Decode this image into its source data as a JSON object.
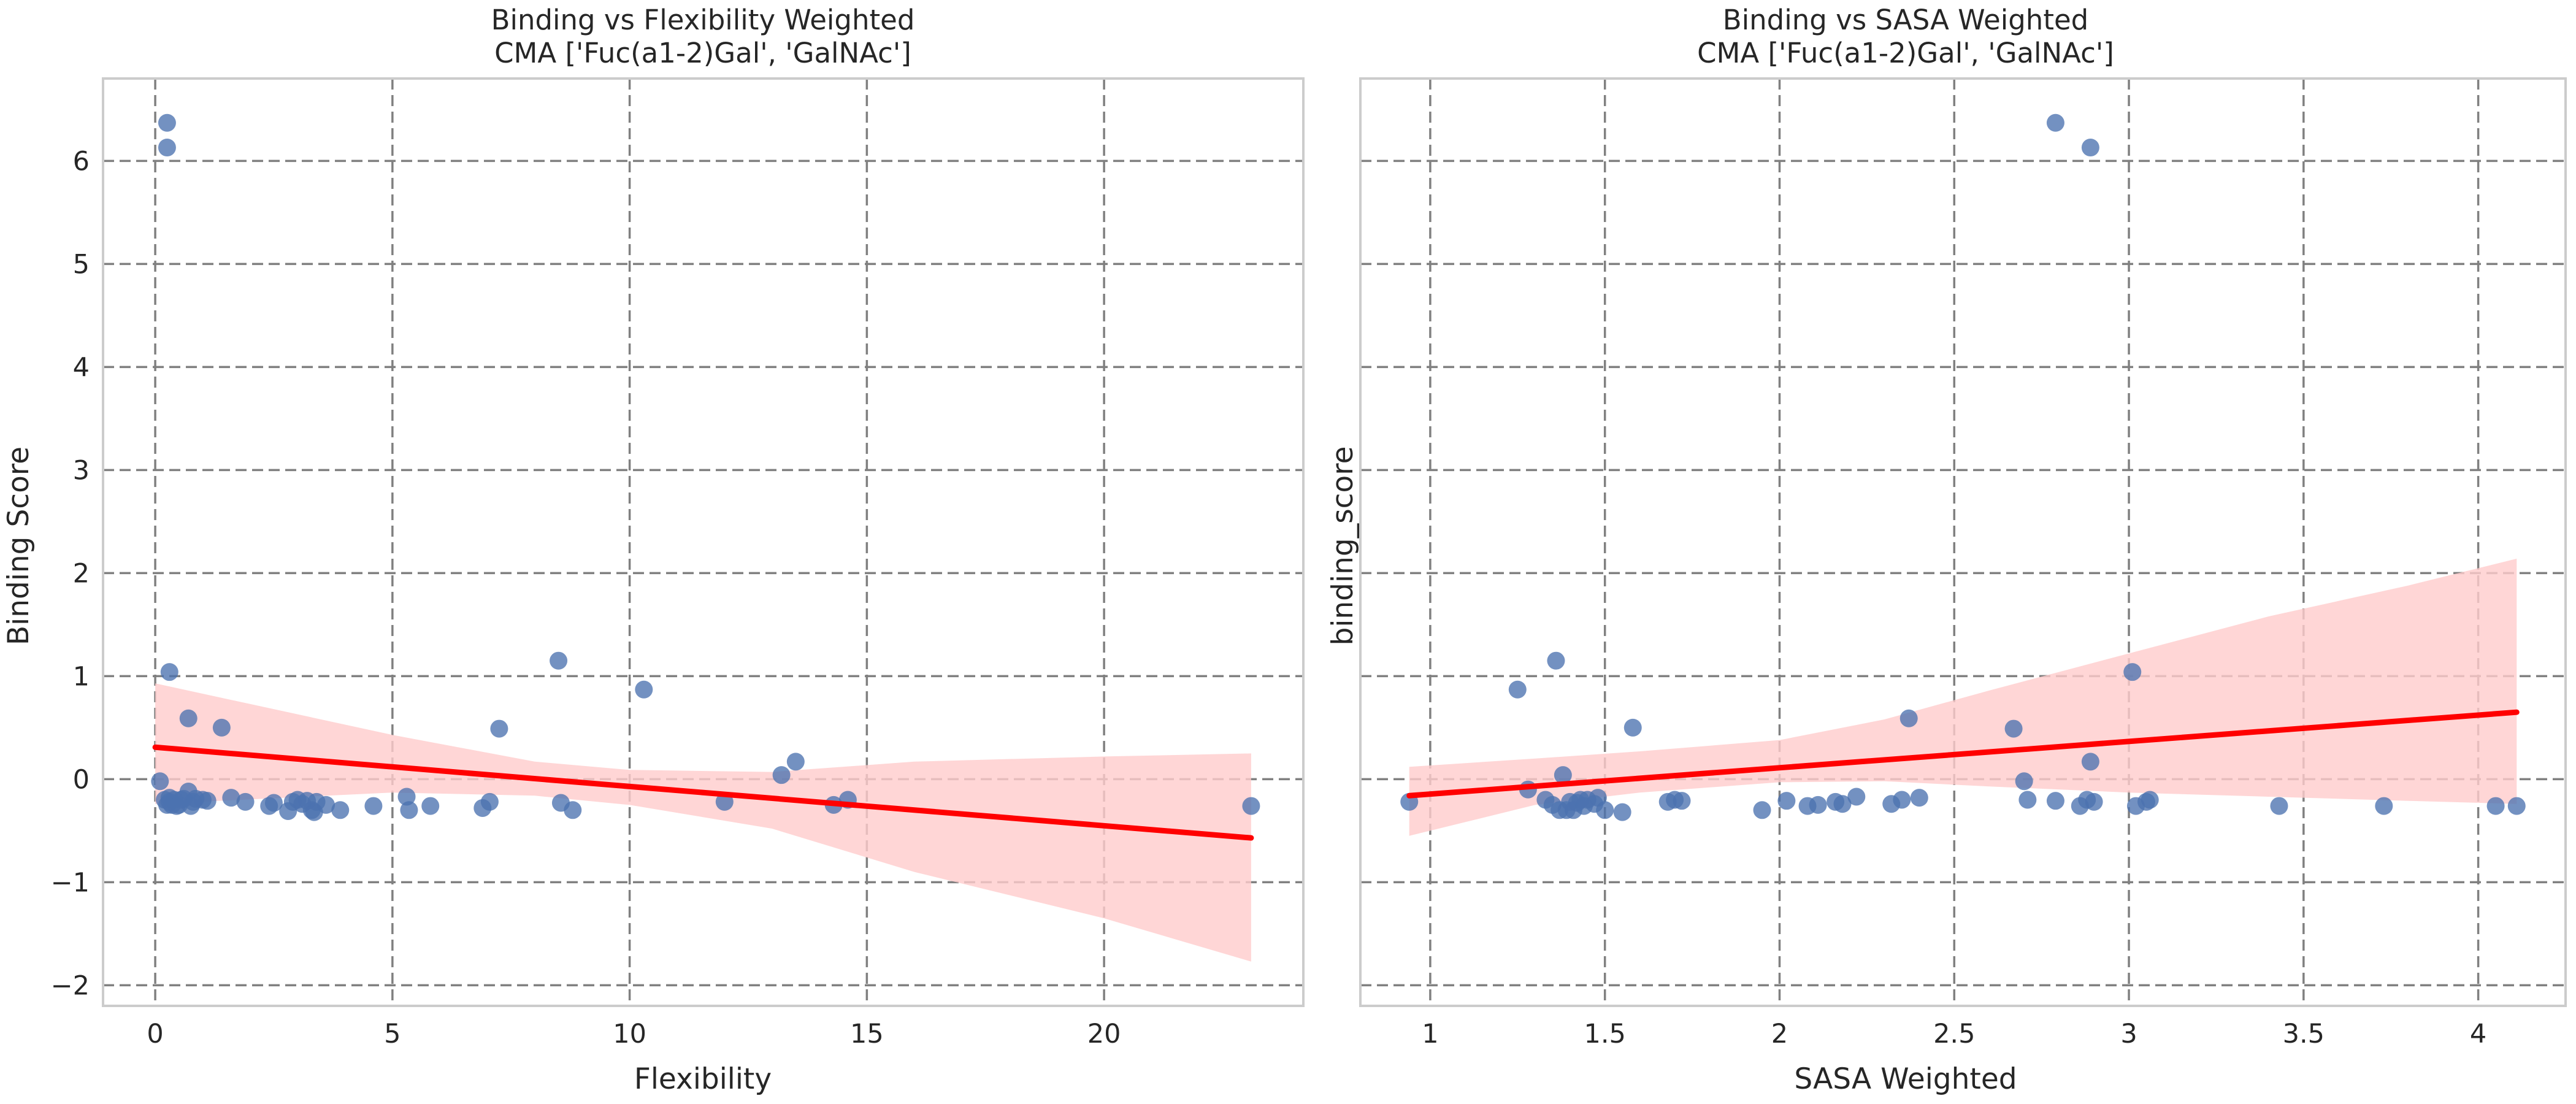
{
  "chart_data": [
    {
      "type": "scatter",
      "title": "Binding vs Flexibility Weighted",
      "subtitle": "CMA ['Fuc(a1-2)Gal', 'GalNAc']",
      "xlabel": "Flexibility",
      "ylabel": "Binding Score",
      "xlim": [
        -1.1,
        24.2
      ],
      "ylim": [
        -2.2,
        6.8
      ],
      "xticks": [
        0,
        5,
        10,
        15,
        20
      ],
      "yticks": [
        -2,
        -1,
        0,
        1,
        2,
        3,
        4,
        5,
        6
      ],
      "grid": true,
      "grid_style": "dashed",
      "point_color": "#4c72b0",
      "fit_color": "#ff0000",
      "band_color": "#ffcccc",
      "points": {
        "x": [
          0.1,
          0.2,
          0.25,
          0.3,
          0.3,
          0.35,
          0.4,
          0.45,
          0.5,
          0.55,
          0.6,
          0.7,
          0.75,
          0.8,
          0.85,
          1.0,
          1.1,
          1.4,
          1.6,
          1.9,
          2.4,
          2.5,
          2.8,
          2.9,
          3.0,
          3.1,
          3.2,
          3.3,
          3.35,
          3.4,
          3.6,
          3.9,
          4.6,
          5.3,
          5.35,
          5.8,
          6.9,
          7.05,
          7.25,
          8.5,
          8.55,
          8.8,
          10.3,
          12.0,
          13.2,
          13.5,
          14.3,
          14.6,
          23.1,
          0.25,
          0.25,
          0.3,
          0.7
        ],
        "y": [
          -0.02,
          -0.2,
          -0.25,
          -0.22,
          -0.18,
          -0.25,
          -0.2,
          -0.26,
          -0.25,
          -0.2,
          -0.19,
          -0.12,
          -0.26,
          -0.22,
          -0.19,
          -0.2,
          -0.21,
          0.5,
          -0.18,
          -0.22,
          -0.26,
          -0.23,
          -0.31,
          -0.22,
          -0.2,
          -0.24,
          -0.21,
          -0.3,
          -0.32,
          -0.22,
          -0.25,
          -0.3,
          -0.26,
          -0.17,
          -0.3,
          -0.26,
          -0.28,
          -0.22,
          0.49,
          1.15,
          -0.23,
          -0.3,
          0.87,
          -0.22,
          0.04,
          0.17,
          -0.25,
          -0.2,
          -0.26,
          6.37,
          6.13,
          1.04,
          0.59
        ]
      },
      "fit_line": {
        "x": [
          0.0,
          23.1
        ],
        "y": [
          0.31,
          -0.57
        ]
      },
      "confidence_band": {
        "x": [
          0.0,
          5.0,
          8.0,
          10.0,
          13.0,
          16.0,
          20.0,
          23.1
        ],
        "upper": [
          0.93,
          0.43,
          0.17,
          0.09,
          0.07,
          0.17,
          0.22,
          0.25
        ],
        "lower": [
          -0.24,
          -0.13,
          -0.16,
          -0.25,
          -0.48,
          -0.9,
          -1.35,
          -1.77
        ]
      }
    },
    {
      "type": "scatter",
      "title": "Binding vs SASA Weighted",
      "subtitle": "CMA ['Fuc(a1-2)Gal', 'GalNAc']",
      "xlabel": "SASA Weighted",
      "ylabel": "binding_score",
      "xlim": [
        0.8,
        4.25
      ],
      "ylim": [
        -2.2,
        6.8
      ],
      "xticks": [
        1.0,
        1.5,
        2.0,
        2.5,
        3.0,
        3.5,
        4.0
      ],
      "yticks": [
        -2,
        -1,
        0,
        1,
        2,
        3,
        4,
        5,
        6
      ],
      "grid": true,
      "grid_style": "dashed",
      "point_color": "#4c72b0",
      "fit_color": "#ff0000",
      "band_color": "#ffcccc",
      "points": {
        "x": [
          0.94,
          1.25,
          1.28,
          1.33,
          1.35,
          1.36,
          1.37,
          1.38,
          1.39,
          1.4,
          1.41,
          1.42,
          1.43,
          1.44,
          1.45,
          1.47,
          1.48,
          1.5,
          1.55,
          1.58,
          1.68,
          1.7,
          1.72,
          1.95,
          2.02,
          2.08,
          2.11,
          2.16,
          2.18,
          2.22,
          2.32,
          2.35,
          2.37,
          2.4,
          2.67,
          2.7,
          2.71,
          2.79,
          2.86,
          2.88,
          2.89,
          2.9,
          3.01,
          3.02,
          3.05,
          3.06,
          3.43,
          3.73,
          4.05,
          4.11,
          2.79,
          2.89
        ],
        "y": [
          -0.22,
          0.87,
          -0.1,
          -0.2,
          -0.25,
          1.15,
          -0.3,
          0.04,
          -0.3,
          -0.22,
          -0.3,
          -0.23,
          -0.2,
          -0.26,
          -0.2,
          -0.24,
          -0.18,
          -0.3,
          -0.32,
          0.5,
          -0.22,
          -0.2,
          -0.21,
          -0.3,
          -0.21,
          -0.26,
          -0.25,
          -0.22,
          -0.24,
          -0.17,
          -0.24,
          -0.2,
          0.59,
          -0.18,
          0.49,
          -0.02,
          -0.2,
          -0.21,
          -0.26,
          -0.2,
          0.17,
          -0.22,
          1.04,
          -0.26,
          -0.22,
          -0.2,
          -0.26,
          -0.26,
          -0.26,
          -0.26,
          6.37,
          6.13
        ]
      },
      "fit_line": {
        "x": [
          0.94,
          4.11
        ],
        "y": [
          -0.16,
          0.65
        ]
      },
      "confidence_band": {
        "x": [
          0.94,
          1.3,
          1.6,
          2.0,
          2.3,
          2.6,
          3.0,
          3.4,
          3.8,
          4.11
        ],
        "upper": [
          0.12,
          0.2,
          0.27,
          0.38,
          0.58,
          0.86,
          1.22,
          1.58,
          1.88,
          2.14
        ],
        "lower": [
          -0.55,
          -0.25,
          -0.13,
          -0.03,
          -0.02,
          -0.07,
          -0.13,
          -0.17,
          -0.21,
          -0.24
        ]
      }
    }
  ]
}
